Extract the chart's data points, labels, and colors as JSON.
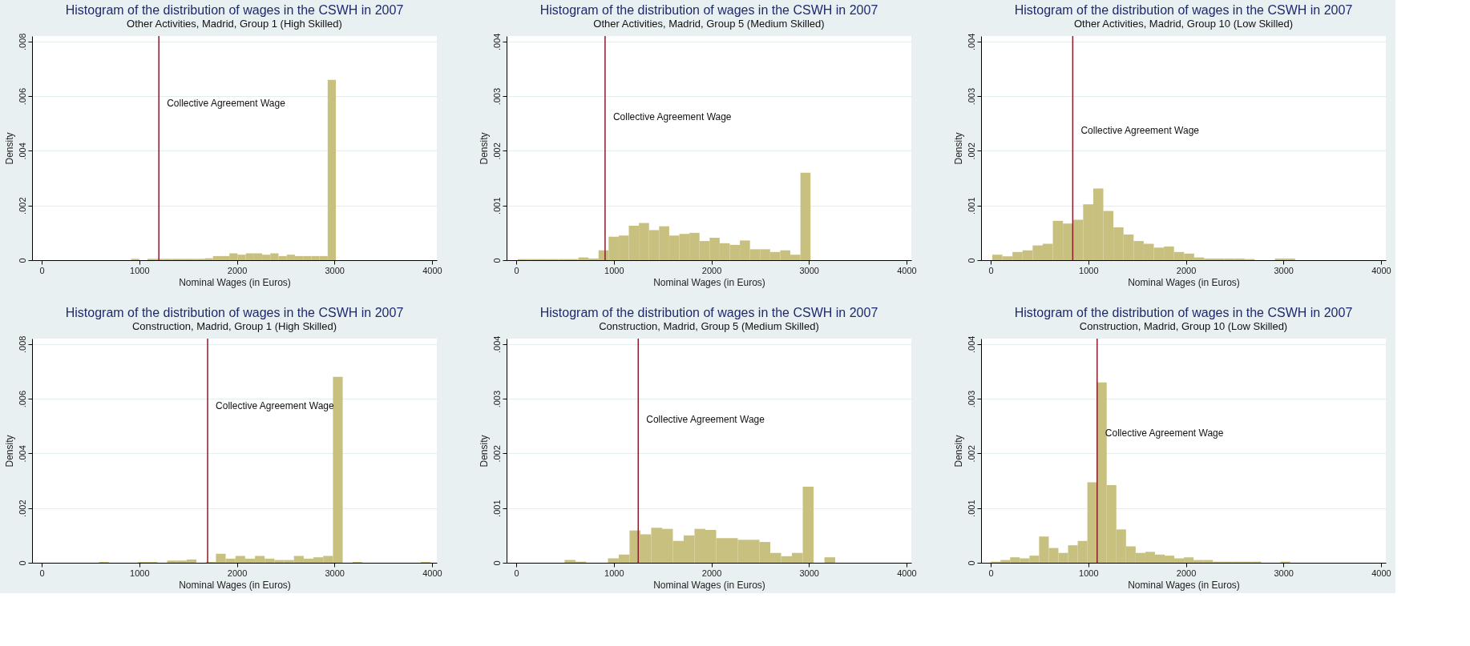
{
  "chart_data": [
    {
      "type": "histogram",
      "title": "Histogram of the distribution of wages in the CSWH in 2007",
      "subtitle": "Other Activities, Madrid, Group 1 (High Skilled)",
      "xlabel": "Nominal Wages (in Euros)",
      "ylabel": "Density",
      "color": "#c8c07f",
      "bins": [
        915,
        999,
        1083,
        1167,
        1251,
        1335,
        1419,
        1503,
        1587,
        1671,
        1755,
        1839,
        1923,
        2007,
        2091,
        2175,
        2259,
        2343,
        2427,
        2511,
        2595,
        2679,
        2763,
        2847,
        2931,
        3015
      ],
      "values": [
        5e-05,
        0,
        5e-05,
        5e-05,
        5e-05,
        5e-05,
        5e-05,
        5e-05,
        5e-05,
        7e-05,
        0.00015,
        0.00015,
        0.00025,
        0.0002,
        0.00025,
        0.00025,
        0.0002,
        0.00025,
        0.00015,
        0.0002,
        0.00015,
        0.00015,
        0.00015,
        0.00015,
        0.0066
      ],
      "xlim": [
        -100,
        4050
      ],
      "ylim": [
        0,
        0.0082
      ],
      "xticks": [
        0,
        1000,
        2000,
        3000,
        4000
      ],
      "yticks": [
        {
          "value": 0,
          "label": "0"
        },
        {
          "value": 0.002,
          "label": ".002"
        },
        {
          "value": 0.004,
          "label": ".004"
        },
        {
          "value": 0.006,
          "label": ".006"
        },
        {
          "value": 0.008,
          "label": ".008"
        }
      ],
      "grid": "y",
      "ref_lines": [
        {
          "axis": "x",
          "value": 1200,
          "color": "#8b1a2b"
        }
      ],
      "annotations": [
        "Collective Agreement Wage"
      ]
    },
    {
      "type": "histogram",
      "title": "Histogram of the distribution of wages in the CSWH in 2007",
      "subtitle": "Other Activities, Madrid, Group 5 (Medium Skilled)",
      "xlabel": "Nominal Wages (in Euros)",
      "ylabel": "Density",
      "color": "#c8c07f",
      "bins": [
        15,
        118.5,
        222,
        325.5,
        429,
        532.5,
        636,
        739.5,
        843,
        946.5,
        1050,
        1153.5,
        1257,
        1360.5,
        1464,
        1567.5,
        1671,
        1774.5,
        1878,
        1981.5,
        2085,
        2188.5,
        2292,
        2395.5,
        2499,
        2602.5,
        2706,
        2809.5,
        2913,
        3016.5
      ],
      "values": [
        2e-05,
        2e-05,
        2e-05,
        2e-05,
        2e-05,
        2e-05,
        5e-05,
        3e-05,
        0.00018,
        0.00043,
        0.00045,
        0.00063,
        0.00068,
        0.00055,
        0.00062,
        0.00045,
        0.00048,
        0.0005,
        0.00035,
        0.00041,
        0.00031,
        0.00028,
        0.00036,
        0.0002,
        0.0002,
        0.00015,
        0.00018,
        0.0001,
        0.0016
      ],
      "xlim": [
        -100,
        4050
      ],
      "ylim": [
        0,
        0.0041
      ],
      "xticks": [
        0,
        1000,
        2000,
        3000,
        4000
      ],
      "yticks": [
        {
          "value": 0,
          "label": "0"
        },
        {
          "value": 0.001,
          "label": ".001"
        },
        {
          "value": 0.002,
          "label": ".002"
        },
        {
          "value": 0.003,
          "label": ".003"
        },
        {
          "value": 0.004,
          "label": ".004"
        }
      ],
      "grid": "y",
      "ref_lines": [
        {
          "axis": "x",
          "value": 910,
          "color": "#8b1a2b"
        }
      ],
      "annotations": [
        "Collective Agreement Wage"
      ]
    },
    {
      "type": "histogram",
      "title": "Histogram of the distribution of wages in the CSWH in 2007",
      "subtitle": "Other Activities, Madrid, Group 10 (Low Skilled)",
      "xlabel": "Nominal Wages (in Euros)",
      "ylabel": "Density",
      "color": "#c8c07f",
      "bins": [
        15,
        118.5,
        222,
        325.5,
        429,
        532.5,
        636,
        739.5,
        843,
        946.5,
        1050,
        1153.5,
        1257,
        1360.5,
        1464,
        1567.5,
        1671,
        1774.5,
        1878,
        1981.5,
        2085,
        2188.5,
        2292,
        2395.5,
        2499,
        2602.5,
        2706,
        2809.5,
        2913,
        3016.5,
        3120
      ],
      "values": [
        0.0001,
        7e-05,
        0.00015,
        0.00018,
        0.00027,
        0.0003,
        0.00072,
        0.00067,
        0.00074,
        0.00102,
        0.00131,
        0.0009,
        0.0006,
        0.00047,
        0.00035,
        0.0003,
        0.00023,
        0.00025,
        0.00015,
        0.00012,
        5e-05,
        3e-05,
        3e-05,
        3e-05,
        3e-05,
        2e-05,
        0,
        0,
        3e-05,
        3e-05
      ],
      "xlim": [
        -100,
        4050
      ],
      "ylim": [
        0,
        0.0041
      ],
      "xticks": [
        0,
        1000,
        2000,
        3000,
        4000
      ],
      "yticks": [
        {
          "value": 0,
          "label": "0"
        },
        {
          "value": 0.001,
          "label": ".001"
        },
        {
          "value": 0.002,
          "label": ".002"
        },
        {
          "value": 0.003,
          "label": ".003"
        },
        {
          "value": 0.004,
          "label": ".004"
        }
      ],
      "grid": "y",
      "ref_lines": [
        {
          "axis": "x",
          "value": 840,
          "color": "#8b1a2b"
        }
      ],
      "annotations": [
        "Collective Agreement Wage"
      ]
    },
    {
      "type": "histogram",
      "title": "Histogram of the distribution of wages in the CSWH in 2007",
      "subtitle": "Construction, Madrid, Group 1 (High Skilled)",
      "xlabel": "Nominal Wages (in Euros)",
      "ylabel": "Density",
      "color": "#c8c07f",
      "bins": [
        585,
        685,
        785,
        885,
        985,
        1085,
        1185,
        1285,
        1385,
        1485,
        1585,
        1685,
        1785,
        1885,
        1985,
        2085,
        2185,
        2285,
        2385,
        2485,
        2585,
        2685,
        2785,
        2885,
        2985,
        3085,
        3185,
        3285,
        3385,
        3485,
        3585,
        3685,
        3785,
        3885,
        3985
      ],
      "values": [
        3e-05,
        0,
        0,
        0,
        3e-05,
        3e-05,
        0,
        8e-05,
        8e-05,
        0.00012,
        0,
        3e-05,
        0.00033,
        0.00015,
        0.00025,
        0.00015,
        0.00025,
        0.00015,
        0.0001,
        0.0001,
        0.00025,
        0.00015,
        0.0002,
        0.00025,
        0.0068,
        0,
        3e-05,
        0,
        0,
        0,
        0,
        0,
        0,
        3e-05
      ],
      "xlim": [
        -100,
        4050
      ],
      "ylim": [
        0,
        0.0082
      ],
      "xticks": [
        0,
        1000,
        2000,
        3000,
        4000
      ],
      "yticks": [
        {
          "value": 0,
          "label": "0"
        },
        {
          "value": 0.002,
          "label": ".002"
        },
        {
          "value": 0.004,
          "label": ".004"
        },
        {
          "value": 0.006,
          "label": ".006"
        },
        {
          "value": 0.008,
          "label": ".008"
        }
      ],
      "grid": "y",
      "ref_lines": [
        {
          "axis": "x",
          "value": 1700,
          "color": "#8b1a2b"
        }
      ],
      "annotations": [
        "Collective Agreement Wage"
      ]
    },
    {
      "type": "histogram",
      "title": "Histogram of the distribution of wages in the CSWH in 2007",
      "subtitle": "Construction, Madrid, Group 5 (Medium Skilled)",
      "xlabel": "Nominal Wages (in Euros)",
      "ylabel": "Density",
      "color": "#c8c07f",
      "bins": [
        495,
        606,
        717,
        828,
        939,
        1050,
        1161,
        1272,
        1383,
        1494,
        1605,
        1716,
        1827,
        1938,
        2049,
        2160,
        2271,
        2382,
        2493,
        2604,
        2715,
        2826,
        2937,
        3048,
        3159,
        3270
      ],
      "values": [
        5e-05,
        2e-05,
        0,
        0,
        8e-05,
        0.00015,
        0.00059,
        0.00052,
        0.00064,
        0.00062,
        0.0004,
        0.0005,
        0.00062,
        0.0006,
        0.00045,
        0.00045,
        0.00042,
        0.00042,
        0.00038,
        0.00018,
        0.00012,
        0.00018,
        0.00139,
        0,
        0.0001
      ],
      "xlim": [
        -100,
        4050
      ],
      "ylim": [
        0,
        0.0041
      ],
      "xticks": [
        0,
        1000,
        2000,
        3000,
        4000
      ],
      "yticks": [
        {
          "value": 0,
          "label": "0"
        },
        {
          "value": 0.001,
          "label": ".001"
        },
        {
          "value": 0.002,
          "label": ".002"
        },
        {
          "value": 0.003,
          "label": ".003"
        },
        {
          "value": 0.004,
          "label": ".004"
        }
      ],
      "grid": "y",
      "ref_lines": [
        {
          "axis": "x",
          "value": 1250,
          "color": "#8b1a2b"
        }
      ],
      "annotations": [
        "Collective Agreement Wage"
      ]
    },
    {
      "type": "histogram",
      "title": "Histogram of the distribution of wages in the CSWH in 2007",
      "subtitle": "Construction, Madrid, Group 10 (Low Skilled)",
      "xlabel": "Nominal Wages (in Euros)",
      "ylabel": "Density",
      "color": "#c8c07f",
      "bins": [
        0,
        99,
        198,
        297,
        396,
        495,
        594,
        693,
        792,
        891,
        990,
        1089,
        1188,
        1287,
        1386,
        1485,
        1584,
        1683,
        1782,
        1881,
        1980,
        2079,
        2178,
        2277,
        2376,
        2475,
        2574,
        2673,
        2772,
        2871,
        2970,
        3069
      ],
      "values": [
        2e-05,
        5e-05,
        0.0001,
        8e-05,
        0.00013,
        0.00048,
        0.00027,
        0.00018,
        0.00032,
        0.0004,
        0.00147,
        0.0033,
        0.00142,
        0.00061,
        0.0003,
        0.00018,
        0.0002,
        0.00015,
        0.00013,
        8e-05,
        0.0001,
        5e-05,
        5e-05,
        2e-05,
        2e-05,
        2e-05,
        2e-05,
        2e-05,
        0,
        0,
        2e-05
      ],
      "xlim": [
        -100,
        4050
      ],
      "ylim": [
        0,
        0.0041
      ],
      "xticks": [
        0,
        1000,
        2000,
        3000,
        4000
      ],
      "yticks": [
        {
          "value": 0,
          "label": "0"
        },
        {
          "value": 0.001,
          "label": ".001"
        },
        {
          "value": 0.002,
          "label": ".002"
        },
        {
          "value": 0.003,
          "label": ".003"
        },
        {
          "value": 0.004,
          "label": ".004"
        }
      ],
      "grid": "y",
      "ref_lines": [
        {
          "axis": "x",
          "value": 1090,
          "color": "#8b1a2b"
        }
      ],
      "annotations": [
        "Collective Agreement Wage"
      ]
    }
  ]
}
